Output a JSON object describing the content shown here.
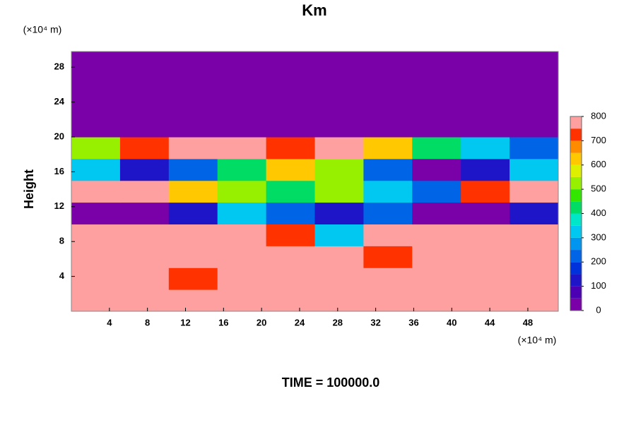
{
  "chart_data": {
    "type": "contour",
    "title": "Km",
    "y_unit": "(×10⁴ m)",
    "x_unit": "(×10⁴ m)",
    "ylabel": "Height",
    "footer": "TIME = 100000.0",
    "xlim": [
      0,
      51.2
    ],
    "ylim": [
      0,
      29.8
    ],
    "xticks": [
      4,
      8,
      12,
      16,
      20,
      24,
      28,
      32,
      36,
      40,
      44,
      48
    ],
    "yticks": [
      4,
      8,
      12,
      16,
      20,
      24,
      28
    ],
    "x": [
      2.56,
      7.68,
      12.8,
      17.92,
      23.04,
      28.16,
      33.28,
      38.4,
      43.52,
      48.64
    ],
    "y": [
      1.25,
      3.75,
      6.25,
      8.75,
      11.25,
      13.75,
      16.25,
      18.75,
      21.25,
      23.75,
      26.25,
      28.75
    ],
    "z": [
      [
        800,
        800,
        800,
        800,
        800,
        800,
        800,
        800,
        800,
        800
      ],
      [
        800,
        800,
        700,
        800,
        800,
        800,
        800,
        800,
        800,
        800
      ],
      [
        800,
        800,
        800,
        800,
        800,
        800,
        700,
        800,
        800,
        800
      ],
      [
        800,
        800,
        800,
        800,
        700,
        300,
        800,
        800,
        800,
        800
      ],
      [
        0,
        0,
        100,
        300,
        200,
        100,
        200,
        0,
        0,
        100
      ],
      [
        800,
        800,
        600,
        500,
        400,
        500,
        300,
        200,
        700,
        800
      ],
      [
        300,
        100,
        200,
        400,
        600,
        500,
        200,
        0,
        100,
        300
      ],
      [
        500,
        700,
        800,
        800,
        700,
        800,
        600,
        400,
        300,
        200
      ],
      [
        0,
        0,
        0,
        0,
        0,
        0,
        0,
        0,
        0,
        0
      ],
      [
        0,
        0,
        0,
        0,
        0,
        0,
        0,
        0,
        0,
        0
      ],
      [
        0,
        0,
        0,
        0,
        0,
        0,
        0,
        0,
        0,
        0
      ],
      [
        0,
        0,
        0,
        0,
        0,
        0,
        0,
        0,
        0,
        0
      ]
    ],
    "levels": [
      0,
      50,
      100,
      150,
      200,
      250,
      300,
      350,
      400,
      450,
      500,
      550,
      600,
      650,
      700,
      750,
      800
    ],
    "colors": [
      "#7a00a8",
      "#4b00b4",
      "#1e14c8",
      "#0032dc",
      "#0064e6",
      "#0096f0",
      "#00c8f0",
      "#00e6c8",
      "#00dc64",
      "#32e600",
      "#96f000",
      "#dcf000",
      "#ffc800",
      "#ff8c00",
      "#ff3200",
      "#ffa0a0"
    ],
    "cticks": [
      0,
      100,
      200,
      300,
      400,
      500,
      600,
      700,
      800
    ]
  }
}
